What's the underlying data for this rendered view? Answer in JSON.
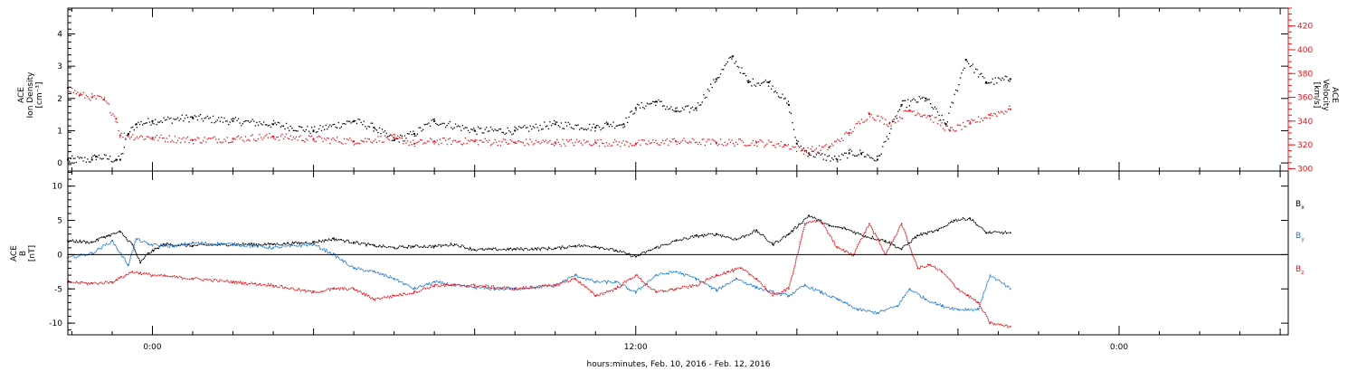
{
  "chart_data": [
    {
      "type": "scatter",
      "panel": "top",
      "title": "",
      "xlabel": "hours:minutes, Feb. 10, 2016 - Feb. 12, 2016",
      "x_ticks": [
        "0:00",
        "12:00",
        "0:00"
      ],
      "x_range_hours_from_feb10_0000": [
        -2.1,
        28.2
      ],
      "data_end_hours": 21.3,
      "y_left": {
        "label_lines": [
          "ACE",
          "Ion Density",
          "[cm⁻³]"
        ],
        "ylim": [
          -0.25,
          4.8
        ],
        "ticks": [
          0,
          1,
          2,
          3,
          4
        ],
        "color": "#000000"
      },
      "y_right": {
        "label_lines": [
          "ACE",
          "Velocity",
          "[km/s]"
        ],
        "ylim": [
          298,
          435
        ],
        "ticks": [
          300,
          320,
          340,
          360,
          380,
          400,
          420
        ],
        "color": "#e8141c"
      },
      "series": [
        {
          "axis": "left",
          "color": "#000000",
          "x": [
            -2.1,
            -1.5,
            -1.4,
            -0.9,
            -0.8,
            -0.6,
            -0.4,
            0,
            1,
            2,
            3,
            4,
            5,
            5.5,
            6,
            6.5,
            7,
            8,
            9,
            10,
            11,
            11.3,
            11.7,
            12,
            12.5,
            13,
            13.5,
            14,
            14.4,
            14.8,
            15.3,
            15.8,
            16,
            16.3,
            17,
            17.3,
            17.6,
            18,
            18.6,
            19.2,
            19.7,
            20.2,
            20.7,
            21.3
          ],
          "values": [
            0.1,
            0.1,
            0.2,
            0.1,
            0.1,
            0.9,
            1.2,
            1.3,
            1.4,
            1.3,
            1.2,
            1.0,
            1.3,
            1.1,
            0.7,
            0.9,
            1.3,
            1.0,
            1.0,
            1.2,
            1.1,
            1.2,
            1.2,
            1.7,
            1.9,
            1.6,
            1.7,
            2.6,
            3.3,
            2.5,
            2.5,
            1.8,
            0.6,
            0.3,
            0.1,
            0.3,
            0.3,
            0.1,
            1.8,
            2.0,
            1.2,
            3.2,
            2.5,
            2.6
          ]
        },
        {
          "axis": "right",
          "color": "#e8141c",
          "x": [
            -2.1,
            -1.8,
            -1.5,
            -1.2,
            -0.9,
            -0.8,
            0,
            1,
            2,
            3,
            4,
            5,
            6,
            6.5,
            7,
            8,
            9,
            10,
            11,
            12,
            13,
            14,
            15,
            15.7,
            16.2,
            16.8,
            17.3,
            17.8,
            18.3,
            18.8,
            19.3,
            19.8,
            20.3,
            20.8,
            21.3
          ],
          "values": [
            368,
            362,
            360,
            358,
            342,
            328,
            326,
            324,
            325,
            327,
            325,
            323,
            326,
            321,
            323,
            323,
            322,
            322,
            322,
            321,
            323,
            322,
            322,
            320,
            315,
            318,
            330,
            346,
            338,
            349,
            344,
            332,
            338,
            345,
            350
          ]
        }
      ]
    },
    {
      "type": "line",
      "panel": "bottom",
      "title": "",
      "xlabel": "hours:minutes, Feb. 10, 2016 - Feb. 12, 2016",
      "x_ticks": [
        "0:00",
        "12:00",
        "0:00"
      ],
      "x_range_hours_from_feb10_0000": [
        -2.1,
        28.2
      ],
      "y": {
        "label_lines": [
          "ACE",
          "B",
          "[nT]"
        ],
        "ylim": [
          -11.7,
          12.2
        ],
        "ticks": [
          -10,
          -5,
          0,
          5,
          10
        ]
      },
      "zero_line": true,
      "legend": {
        "placement": "right",
        "entries": [
          {
            "base": "B",
            "sub": "x",
            "color": "#000000"
          },
          {
            "base": "B",
            "sub": "y",
            "color": "#1e78d2"
          },
          {
            "base": "B",
            "sub": "z",
            "color": "#e8141c"
          }
        ]
      },
      "series": [
        {
          "name": "Bx",
          "color": "#000000",
          "x": [
            -2.1,
            -1.5,
            -1.2,
            -0.8,
            -0.5,
            -0.3,
            -0.1,
            0.3,
            1,
            2,
            3,
            4,
            4.5,
            5,
            5.5,
            6,
            6.5,
            7,
            7.5,
            8,
            9,
            10,
            10.5,
            11,
            11.5,
            12,
            12.5,
            13,
            13.5,
            14,
            14.5,
            15,
            15.4,
            15.8,
            16.3,
            16.8,
            17.2,
            17.7,
            18.2,
            18.6,
            19,
            19.5,
            19.9,
            20.3,
            20.7,
            21.3
          ],
          "values": [
            2.0,
            1.8,
            2.6,
            3.3,
            1.5,
            -1.2,
            0.2,
            1.5,
            1.3,
            1.5,
            1.5,
            1.8,
            2.3,
            1.8,
            1.3,
            1.0,
            1.2,
            1.2,
            1.5,
            0.7,
            0.8,
            0.9,
            1.3,
            1.2,
            0.6,
            -0.3,
            1.0,
            2.0,
            2.7,
            3.0,
            2.2,
            3.5,
            1.5,
            3.0,
            5.7,
            4.2,
            3.8,
            2.7,
            2.0,
            0.8,
            2.8,
            3.5,
            5.0,
            5.3,
            3.2,
            3.2
          ]
        },
        {
          "name": "By",
          "color": "#1e78d2",
          "x": [
            -2.1,
            -1.5,
            -1.0,
            -0.6,
            -0.4,
            -0.1,
            0.5,
            1,
            2,
            3,
            4,
            4.5,
            5,
            5.5,
            6,
            6.5,
            7,
            7.5,
            8,
            8.5,
            9,
            10,
            10.5,
            11,
            11.5,
            12,
            12.5,
            13,
            13.5,
            14,
            14.5,
            15,
            15.4,
            15.8,
            16.2,
            16.6,
            17,
            17.5,
            18,
            18.5,
            18.8,
            19.2,
            19.6,
            20.0,
            20.5,
            20.8,
            21.3
          ],
          "values": [
            -0.5,
            0.2,
            2.0,
            -1.5,
            2.3,
            1.5,
            1.2,
            1.7,
            1.5,
            1.0,
            1.5,
            0.0,
            -2.0,
            -2.5,
            -3.5,
            -5.0,
            -4.0,
            -4.5,
            -4.8,
            -5.0,
            -5.0,
            -4.5,
            -3.0,
            -4.0,
            -4.0,
            -5.5,
            -3.0,
            -2.5,
            -3.5,
            -5.2,
            -3.5,
            -4.8,
            -5.5,
            -6.0,
            -4.5,
            -5.5,
            -6.5,
            -8.0,
            -8.5,
            -7.5,
            -5.0,
            -6.5,
            -7.5,
            -8.0,
            -8.0,
            -3.0,
            -5.0
          ]
        },
        {
          "name": "Bz",
          "color": "#e8141c",
          "x": [
            -2.1,
            -1.5,
            -1.0,
            -0.5,
            0,
            1,
            2,
            3,
            4,
            4.5,
            5,
            5.5,
            6,
            6.5,
            7,
            8,
            9,
            10,
            10.5,
            11,
            11.5,
            12,
            12.5,
            13,
            13.5,
            14,
            14.3,
            14.6,
            15,
            15.4,
            15.8,
            16.2,
            16.6,
            17,
            17.4,
            17.8,
            18.2,
            18.6,
            19,
            19.3,
            19.6,
            20,
            20.5,
            20.8,
            21.3
          ],
          "values": [
            -4.0,
            -4.2,
            -4.0,
            -2.5,
            -3.0,
            -3.5,
            -4.0,
            -4.5,
            -5.5,
            -5.0,
            -5.0,
            -6.5,
            -6.0,
            -5.5,
            -4.5,
            -4.5,
            -5.0,
            -4.5,
            -3.5,
            -6.0,
            -5.0,
            -3.0,
            -5.5,
            -5.0,
            -4.5,
            -3.0,
            -2.5,
            -2.0,
            -3.5,
            -6.0,
            -5.0,
            4.5,
            5.0,
            1.0,
            0.0,
            4.5,
            0.0,
            4.5,
            -2.0,
            -1.5,
            -2.5,
            -5.0,
            -7.0,
            -10.0,
            -10.5
          ]
        }
      ]
    }
  ]
}
